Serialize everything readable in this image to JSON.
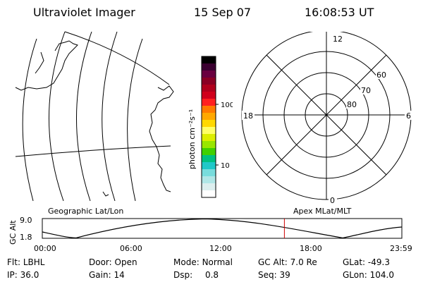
{
  "header": {
    "instrument": "Ultraviolet Imager",
    "date": "15 Sep 07",
    "time": "16:08:53 UT"
  },
  "colorbar": {
    "unit_label": "photon cm⁻²s⁻¹",
    "ticks": [
      "100",
      "10"
    ],
    "colors": [
      "#000000",
      "#3a0030",
      "#6a0040",
      "#8a0024",
      "#b0001c",
      "#d0001c",
      "#ff2020",
      "#ff7a00",
      "#ffa800",
      "#ffd800",
      "#ffff66",
      "#ddee00",
      "#99e600",
      "#40d000",
      "#00c080",
      "#20c8c8",
      "#78dcdc",
      "#b0e6e6",
      "#dceeee",
      "#ffffff"
    ]
  },
  "left_panel": {
    "caption": "Geographic Lat/Lon"
  },
  "polar_plot": {
    "caption": "Apex MLat/MLT",
    "mlt_labels": {
      "top": "12",
      "right": "6",
      "bottom": "0",
      "left": "18"
    },
    "lat_labels": [
      "60",
      "70",
      "80"
    ]
  },
  "altitude_strip": {
    "ylabel": "GC Alt",
    "ytick_top": "9.0",
    "ytick_bottom": "1.8",
    "x_ticks": [
      "00:00",
      "06:00",
      "12:00",
      "18:00",
      "23:59"
    ],
    "current_marker_time": "16:08:53",
    "marker_color": "#cc0000"
  },
  "info": {
    "row1": [
      {
        "label": "Flt:",
        "value": "LBHL"
      },
      {
        "label": "Door:",
        "value": "Open"
      },
      {
        "label": "Mode:",
        "value": "Normal"
      },
      {
        "label": "GC Alt:",
        "value": "7.0 Re"
      },
      {
        "label": "GLat:",
        "value": "-49.3"
      }
    ],
    "row2": [
      {
        "label": "IP:",
        "value": "36.0"
      },
      {
        "label": "Gain:",
        "value": "14"
      },
      {
        "label": "Dsp:",
        "value": "0.8"
      },
      {
        "label": "Seq:",
        "value": "39"
      },
      {
        "label": "GLon:",
        "value": "104.0"
      }
    ]
  }
}
